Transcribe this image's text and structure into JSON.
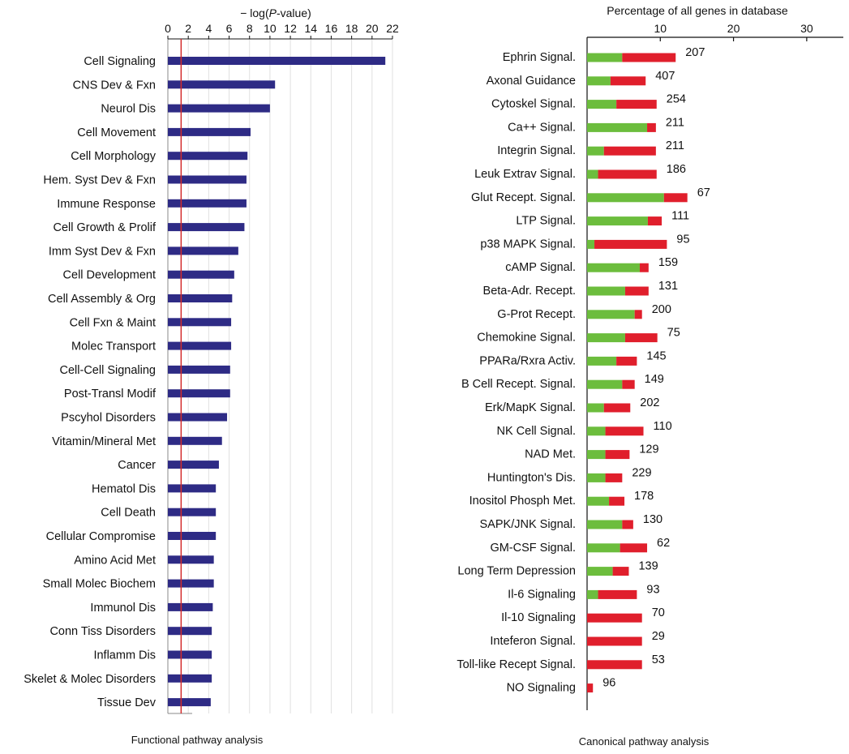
{
  "chart_data": [
    {
      "type": "bar",
      "orientation": "horizontal",
      "xlabel_prefix": "− log(",
      "xlabel_var": "P",
      "xlabel_suffix": "-value)",
      "caption": "Functional pathway analysis",
      "xlim": [
        0,
        22
      ],
      "xticks": [
        "0",
        "2",
        "4",
        "6",
        "8",
        "10",
        "12",
        "14",
        "16",
        "18",
        "20",
        "22"
      ],
      "threshold": 1.3,
      "colors": {
        "bar": "#2e2b85",
        "threshold": "#d32a2a",
        "grid": "#e0e0e0"
      },
      "categories": [
        "Cell Signaling",
        "CNS Dev & Fxn",
        "Neurol Dis",
        "Cell Movement",
        "Cell Morphology",
        "Hem. Syst Dev & Fxn",
        "Immune Response",
        "Cell Growth & Prolif",
        "Imm Syst Dev & Fxn",
        "Cell Development",
        "Cell Assembly & Org",
        "Cell Fxn & Maint",
        "Molec Transport",
        "Cell-Cell Signaling",
        "Post-Transl Modif",
        "Pscyhol Disorders",
        "Vitamin/Mineral Met",
        "Cancer",
        "Hematol Dis",
        "Cell Death",
        "Cellular Compromise",
        "Amino Acid Met",
        "Small Molec Biochem",
        "Immunol Dis",
        "Conn Tiss Disorders",
        "Inflamm Dis",
        "Skelet & Molec Disorders",
        "Tissue Dev"
      ],
      "values": [
        21.3,
        10.5,
        10.0,
        8.1,
        7.8,
        7.7,
        7.7,
        7.5,
        6.9,
        6.5,
        6.3,
        6.2,
        6.2,
        6.1,
        6.1,
        5.8,
        5.3,
        5.0,
        4.7,
        4.7,
        4.7,
        4.5,
        4.5,
        4.4,
        4.3,
        4.3,
        4.3,
        4.2
      ]
    },
    {
      "type": "bar",
      "orientation": "horizontal",
      "stacked": true,
      "xlabel": "Percentage of all genes in database",
      "caption": "Canonical pathway analysis",
      "xlim": [
        0,
        35
      ],
      "xticks": [
        "10",
        "20",
        "30"
      ],
      "xtick_values": [
        10,
        20,
        30
      ],
      "colors": {
        "green": "#6cbd3d",
        "red": "#e01f2c"
      },
      "categories": [
        "Ephrin Signal.",
        "Axonal Guidance",
        "Cytoskel Signal.",
        "Ca++ Signal.",
        "Integrin Signal.",
        "Leuk Extrav Signal.",
        "Glut Recept. Signal.",
        "LTP Signal.",
        "p38 MAPK Signal.",
        "cAMP Signal.",
        "Beta-Adr. Recept.",
        "G-Prot Recept.",
        "Chemokine Signal.",
        "PPARa/Rxra Activ.",
        "B Cell Recept. Signal.",
        "Erk/MapK Signal.",
        "NK Cell Signal.",
        "NAD Met.",
        "Huntington's Dis.",
        "Inositol Phosph Met.",
        "SAPK/JNK Signal.",
        "GM-CSF Signal.",
        "Long Term Depression",
        "Il-6 Signaling",
        "Il-10 Signaling",
        "Inteferon Signal.",
        "Toll-like Recept Signal.",
        "NO Signaling"
      ],
      "series": [
        {
          "color": "green",
          "values": [
            4.8,
            3.2,
            4.0,
            8.2,
            2.3,
            1.5,
            10.5,
            8.3,
            1.0,
            7.2,
            5.2,
            6.5,
            5.2,
            4.0,
            4.8,
            2.3,
            2.5,
            2.5,
            2.5,
            3.0,
            4.8,
            4.5,
            3.5,
            1.5,
            0.0,
            0.0,
            0.0,
            0.0
          ]
        },
        {
          "color": "red",
          "values": [
            7.3,
            4.8,
            5.5,
            1.2,
            7.1,
            8.0,
            3.2,
            1.9,
            9.9,
            1.2,
            3.2,
            1.0,
            4.4,
            2.8,
            1.7,
            3.6,
            5.2,
            3.3,
            2.3,
            2.1,
            1.5,
            3.7,
            2.2,
            5.3,
            7.5,
            7.5,
            7.5,
            0.8
          ]
        }
      ],
      "counts": [
        "207",
        "407",
        "254",
        "211",
        "211",
        "186",
        "67",
        "111",
        "95",
        "159",
        "131",
        "200",
        "75",
        "145",
        "149",
        "202",
        "110",
        "129",
        "229",
        "178",
        "130",
        "62",
        "139",
        "93",
        "70",
        "29",
        "53",
        "96"
      ]
    }
  ]
}
